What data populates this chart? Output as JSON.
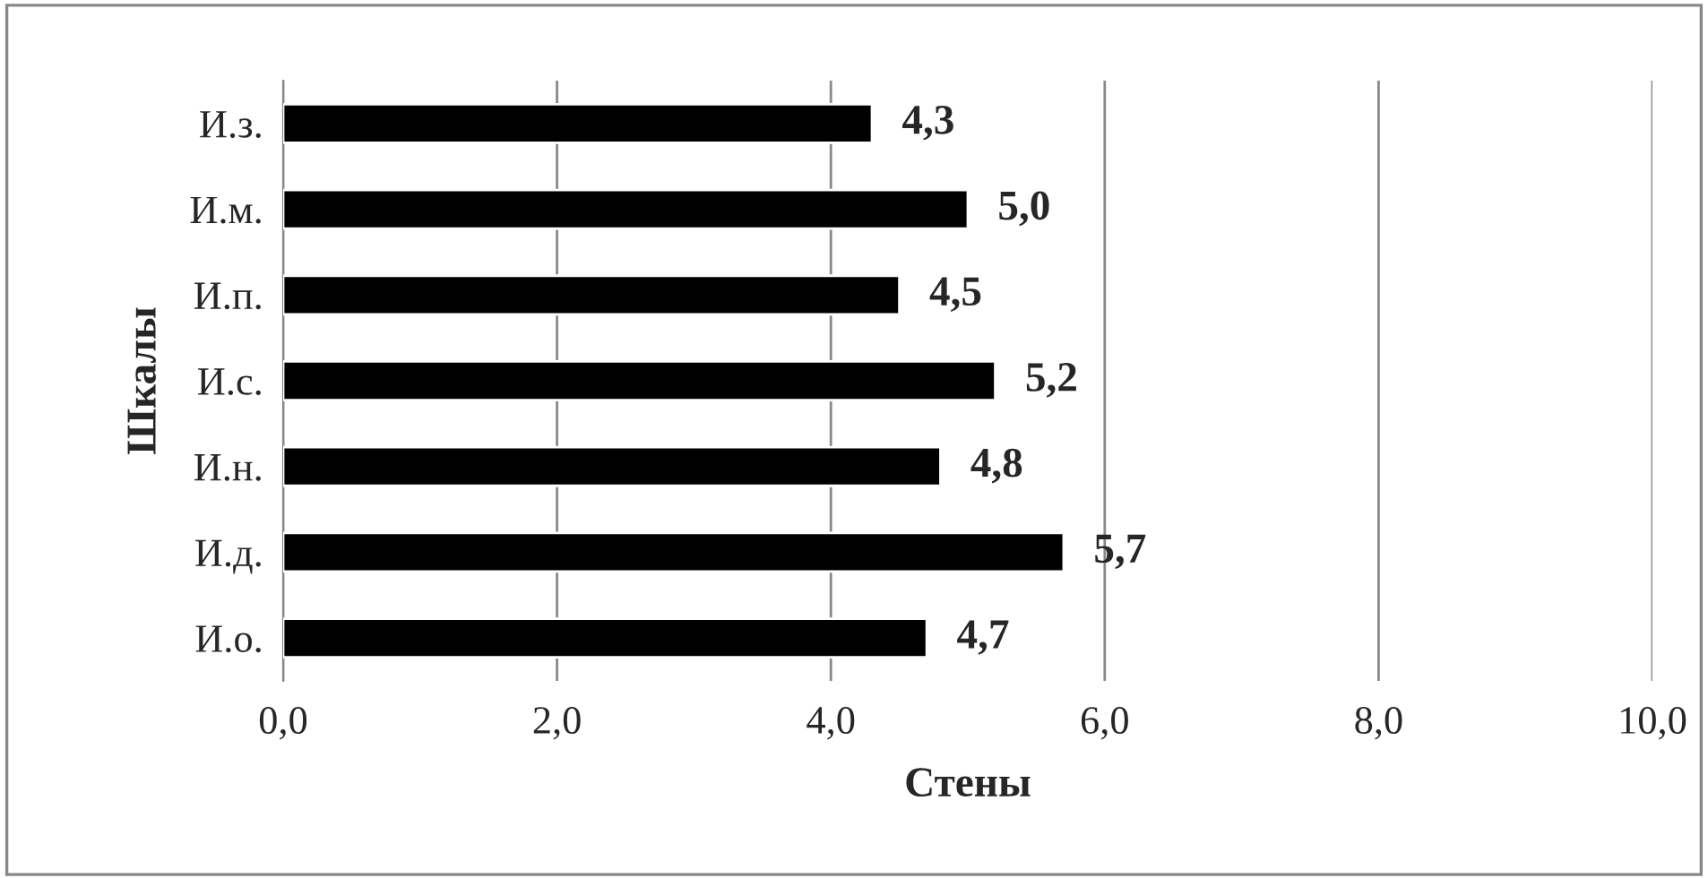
{
  "chart_data": {
    "type": "bar",
    "orientation": "horizontal",
    "xlabel": "Стены",
    "ylabel": "Шкалы",
    "categories": [
      "И.з.",
      "И.м.",
      "И.п.",
      "И.с.",
      "И.н.",
      "И.д.",
      "И.о."
    ],
    "values": [
      4.3,
      5.0,
      4.5,
      5.2,
      4.8,
      5.7,
      4.7
    ],
    "color": "#000000",
    "value_labels": [
      "4,3",
      "5,0",
      "4,5",
      "5,2",
      "4,8",
      "5,7",
      "4,7"
    ],
    "xlim": [
      0,
      10
    ],
    "xticks": [
      {
        "value": 0,
        "label": "0,0"
      },
      {
        "value": 2,
        "label": "2,0"
      },
      {
        "value": 4,
        "label": "4,0"
      },
      {
        "value": 6,
        "label": "6,0"
      },
      {
        "value": 8,
        "label": "8,0"
      },
      {
        "value": 10,
        "label": "10,0"
      }
    ],
    "grid": "x",
    "legend": false
  }
}
